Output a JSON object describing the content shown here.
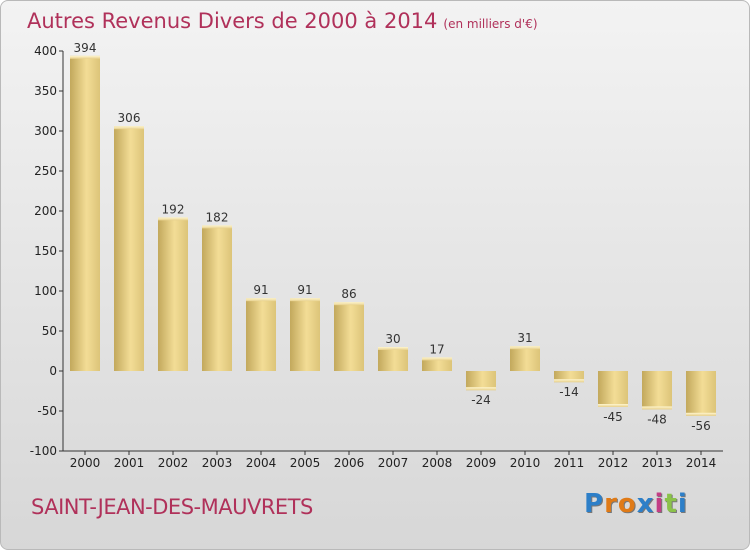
{
  "title": "Autres Revenus Divers de 2000 à 2014",
  "unit": "(en milliers d'€)",
  "commune": "SAINT-JEAN-DES-MAUVRETS",
  "brand": {
    "letters": [
      "P",
      "r",
      "o",
      "x",
      "i",
      "t",
      "i"
    ],
    "colors": [
      "#2d7fc8",
      "#e07a16",
      "#e07a16",
      "#2d7fc8",
      "#c33e85",
      "#8bc24a",
      "#2d7fc8"
    ]
  },
  "chart_data": {
    "type": "bar",
    "title": "Autres Revenus Divers de 2000 à 2014",
    "categories": [
      "2000",
      "2001",
      "2002",
      "2003",
      "2004",
      "2005",
      "2006",
      "2007",
      "2008",
      "2009",
      "2010",
      "2011",
      "2012",
      "2013",
      "2014"
    ],
    "values": [
      394,
      306,
      192,
      182,
      91,
      91,
      86,
      30,
      17,
      -24,
      31,
      -14,
      -45,
      -48,
      -56
    ],
    "ylim": [
      -100,
      400
    ],
    "yticks": [
      400,
      350,
      300,
      250,
      200,
      150,
      100,
      50,
      0,
      -50,
      -100
    ],
    "grid": false,
    "legend": "none",
    "bar_color": "#d9c27a"
  }
}
